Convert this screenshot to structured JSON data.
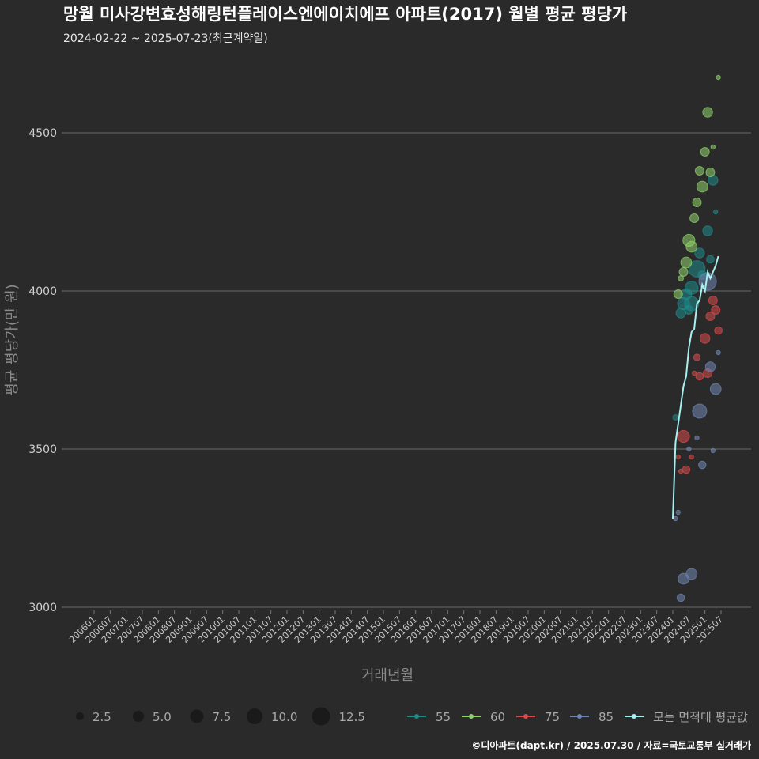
{
  "header": {
    "title": "망월 미사강변효성해링턴플레이스엔에이치에프 아파트(2017) 월별 평균 평당가",
    "subtitle": "2024-02-22 ~ 2025-07-23(최근계약일)"
  },
  "footer": {
    "credit": "©디아파트(dapt.kr) / 2025.07.30 / 자료=국토교통부 실거래가"
  },
  "colors": {
    "background": "#2a2a2b",
    "s55": "#1f8a8a",
    "s60": "#8fd16a",
    "s75": "#d94b4b",
    "s85": "#6f86b3",
    "avg": "#a6f0f0"
  },
  "chart_data": {
    "type": "scatter",
    "title": "망월 미사강변효성해링턴플레이스엔에이치에프 아파트(2017) 월별 평균 평당가",
    "xlabel": "거래년월",
    "ylabel": "평균 평당가(만 원)",
    "ylim": [
      2960,
      4700
    ],
    "yticks": [
      3000,
      3500,
      4000,
      4500
    ],
    "x_categories": [
      "200601",
      "200607",
      "200701",
      "200707",
      "200801",
      "200807",
      "200901",
      "200907",
      "201001",
      "201007",
      "201101",
      "201107",
      "201201",
      "201207",
      "201301",
      "201307",
      "201401",
      "201407",
      "201501",
      "201507",
      "201601",
      "201607",
      "201701",
      "201707",
      "201801",
      "201807",
      "201901",
      "201907",
      "202001",
      "202007",
      "202101",
      "202107",
      "202201",
      "202207",
      "202301",
      "202307",
      "202401",
      "202407",
      "202501",
      "202507"
    ],
    "x_note": "x values are months since 2006-01",
    "size_legend": {
      "values": [
        2.5,
        5.0,
        7.5,
        10.0,
        12.5
      ],
      "labels": [
        "2.5",
        "5.0",
        "7.5",
        "10.0",
        "12.5"
      ]
    },
    "series": [
      {
        "name": "55",
        "key": "s55",
        "points": [
          {
            "x": 217,
            "y": 3600,
            "n": 2
          },
          {
            "x": 219,
            "y": 3930,
            "n": 6
          },
          {
            "x": 220,
            "y": 3960,
            "n": 8
          },
          {
            "x": 221,
            "y": 3990,
            "n": 7
          },
          {
            "x": 222,
            "y": 3940,
            "n": 5
          },
          {
            "x": 223,
            "y": 3960,
            "n": 10
          },
          {
            "x": 223,
            "y": 4010,
            "n": 9
          },
          {
            "x": 225,
            "y": 4070,
            "n": 12
          },
          {
            "x": 226,
            "y": 4120,
            "n": 6
          },
          {
            "x": 227,
            "y": 4050,
            "n": 5
          },
          {
            "x": 229,
            "y": 4190,
            "n": 6
          },
          {
            "x": 230,
            "y": 4100,
            "n": 4
          },
          {
            "x": 231,
            "y": 4350,
            "n": 6
          },
          {
            "x": 232,
            "y": 4250,
            "n": 1
          }
        ]
      },
      {
        "name": "60",
        "key": "s60",
        "points": [
          {
            "x": 218,
            "y": 3990,
            "n": 5
          },
          {
            "x": 219,
            "y": 4040,
            "n": 2
          },
          {
            "x": 220,
            "y": 4060,
            "n": 5
          },
          {
            "x": 221,
            "y": 4090,
            "n": 7
          },
          {
            "x": 222,
            "y": 4160,
            "n": 8
          },
          {
            "x": 223,
            "y": 4140,
            "n": 7
          },
          {
            "x": 224,
            "y": 4230,
            "n": 5
          },
          {
            "x": 225,
            "y": 4280,
            "n": 5
          },
          {
            "x": 226,
            "y": 4380,
            "n": 5
          },
          {
            "x": 227,
            "y": 4330,
            "n": 7
          },
          {
            "x": 228,
            "y": 4440,
            "n": 5
          },
          {
            "x": 229,
            "y": 4565,
            "n": 6
          },
          {
            "x": 230,
            "y": 4375,
            "n": 5
          },
          {
            "x": 231,
            "y": 4455,
            "n": 1
          },
          {
            "x": 233,
            "y": 4675,
            "n": 1
          }
        ]
      },
      {
        "name": "75",
        "key": "s75",
        "points": [
          {
            "x": 218,
            "y": 3475,
            "n": 1
          },
          {
            "x": 219,
            "y": 3430,
            "n": 1
          },
          {
            "x": 220,
            "y": 3540,
            "n": 8
          },
          {
            "x": 221,
            "y": 3435,
            "n": 4
          },
          {
            "x": 223,
            "y": 3475,
            "n": 1
          },
          {
            "x": 224,
            "y": 3740,
            "n": 1
          },
          {
            "x": 225,
            "y": 3790,
            "n": 3
          },
          {
            "x": 226,
            "y": 3730,
            "n": 4
          },
          {
            "x": 228,
            "y": 3850,
            "n": 6
          },
          {
            "x": 229,
            "y": 3740,
            "n": 5
          },
          {
            "x": 230,
            "y": 3920,
            "n": 5
          },
          {
            "x": 231,
            "y": 3970,
            "n": 5
          },
          {
            "x": 232,
            "y": 3940,
            "n": 5
          },
          {
            "x": 233,
            "y": 3875,
            "n": 4
          }
        ]
      },
      {
        "name": "85",
        "key": "s85",
        "points": [
          {
            "x": 217,
            "y": 3280,
            "n": 1
          },
          {
            "x": 218,
            "y": 3300,
            "n": 1
          },
          {
            "x": 219,
            "y": 3030,
            "n": 4
          },
          {
            "x": 220,
            "y": 3090,
            "n": 7
          },
          {
            "x": 222,
            "y": 3500,
            "n": 1
          },
          {
            "x": 223,
            "y": 3105,
            "n": 7
          },
          {
            "x": 225,
            "y": 3535,
            "n": 1
          },
          {
            "x": 226,
            "y": 3620,
            "n": 10
          },
          {
            "x": 227,
            "y": 3450,
            "n": 4
          },
          {
            "x": 229,
            "y": 4030,
            "n": 13
          },
          {
            "x": 230,
            "y": 3760,
            "n": 6
          },
          {
            "x": 231,
            "y": 3495,
            "n": 1
          },
          {
            "x": 232,
            "y": 3690,
            "n": 7
          },
          {
            "x": 233,
            "y": 3805,
            "n": 1
          }
        ]
      }
    ],
    "average": {
      "name": "모든 면적대 평균값",
      "key": "avg",
      "points": [
        {
          "x": 216,
          "y": 3280
        },
        {
          "x": 217,
          "y": 3520
        },
        {
          "x": 218,
          "y": 3580
        },
        {
          "x": 219,
          "y": 3640
        },
        {
          "x": 220,
          "y": 3700
        },
        {
          "x": 221,
          "y": 3730
        },
        {
          "x": 222,
          "y": 3820
        },
        {
          "x": 223,
          "y": 3870
        },
        {
          "x": 224,
          "y": 3880
        },
        {
          "x": 225,
          "y": 3960
        },
        {
          "x": 226,
          "y": 3970
        },
        {
          "x": 227,
          "y": 4020
        },
        {
          "x": 228,
          "y": 4000
        },
        {
          "x": 229,
          "y": 4060
        },
        {
          "x": 230,
          "y": 4040
        },
        {
          "x": 231,
          "y": 4060
        },
        {
          "x": 232,
          "y": 4080
        },
        {
          "x": 233,
          "y": 4110
        }
      ]
    },
    "legend": [
      {
        "name": "55",
        "key": "s55"
      },
      {
        "name": "60",
        "key": "s60"
      },
      {
        "name": "75",
        "key": "s75"
      },
      {
        "name": "85",
        "key": "s85"
      },
      {
        "name": "모든 면적대 평균값",
        "key": "avg"
      }
    ]
  }
}
